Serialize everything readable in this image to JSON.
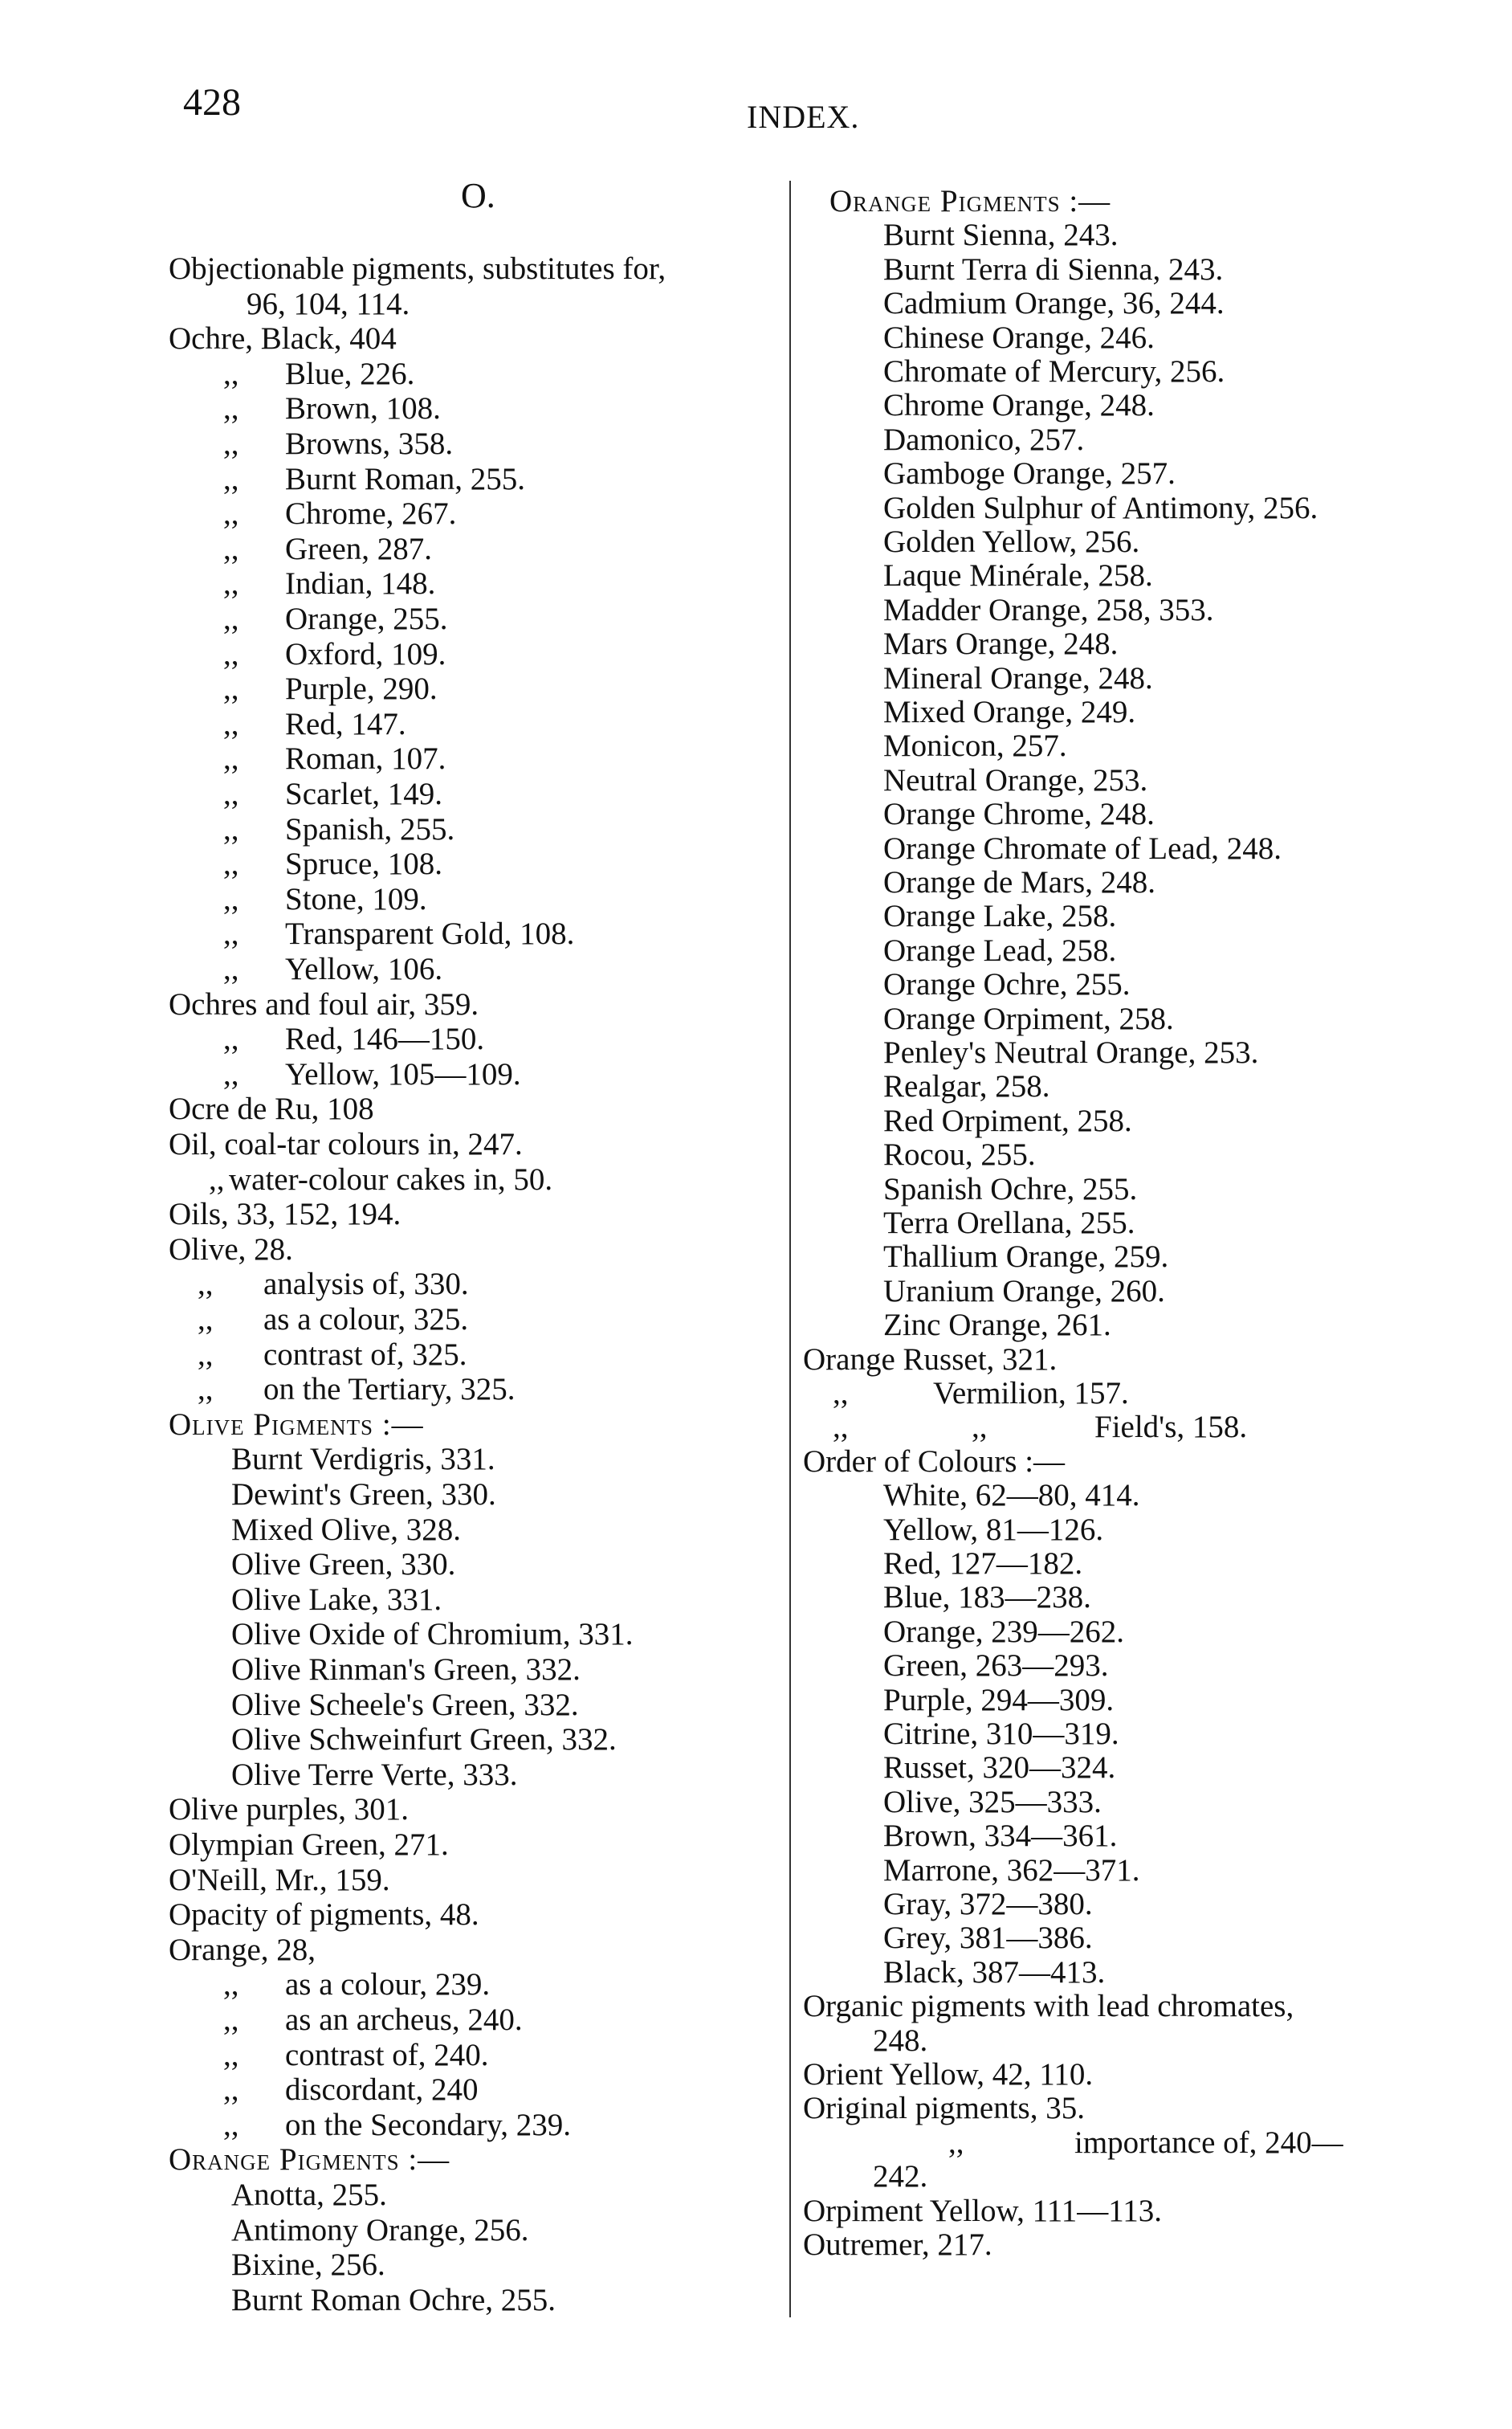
{
  "header": {
    "page_number": "428",
    "running_title": "INDEX."
  },
  "section_letter": "O.",
  "left_column": [
    {
      "kind": "entry",
      "text": "Objectionable pigments, substitutes for,"
    },
    {
      "kind": "cont",
      "text": "96, 104, 114."
    },
    {
      "kind": "entry",
      "text": "Ochre, Black, 404"
    },
    {
      "kind": "ditto",
      "ditto": ",,",
      "text": "Blue, 226."
    },
    {
      "kind": "ditto",
      "ditto": ",,",
      "text": "Brown, 108."
    },
    {
      "kind": "ditto",
      "ditto": ",,",
      "text": "Browns, 358."
    },
    {
      "kind": "ditto",
      "ditto": ",,",
      "text": "Burnt Roman, 255."
    },
    {
      "kind": "ditto",
      "ditto": ",,",
      "text": "Chrome, 267."
    },
    {
      "kind": "ditto",
      "ditto": ",,",
      "text": "Green, 287."
    },
    {
      "kind": "ditto",
      "ditto": ",,",
      "text": "Indian, 148."
    },
    {
      "kind": "ditto",
      "ditto": ",,",
      "text": "Orange, 255."
    },
    {
      "kind": "ditto",
      "ditto": ",,",
      "text": "Oxford, 109."
    },
    {
      "kind": "ditto",
      "ditto": ",,",
      "text": "Purple, 290."
    },
    {
      "kind": "ditto",
      "ditto": ",,",
      "text": "Red, 147."
    },
    {
      "kind": "ditto",
      "ditto": ",,",
      "text": "Roman, 107."
    },
    {
      "kind": "ditto",
      "ditto": ",,",
      "text": "Scarlet, 149."
    },
    {
      "kind": "ditto",
      "ditto": ",,",
      "text": "Spanish, 255."
    },
    {
      "kind": "ditto",
      "ditto": ",,",
      "text": "Spruce, 108."
    },
    {
      "kind": "ditto",
      "ditto": ",,",
      "text": "Stone, 109."
    },
    {
      "kind": "ditto",
      "ditto": ",,",
      "text": "Transparent Gold, 108."
    },
    {
      "kind": "ditto",
      "ditto": ",,",
      "text": "Yellow, 106."
    },
    {
      "kind": "entry",
      "text": "Ochres and foul air, 359."
    },
    {
      "kind": "ditto",
      "ditto": ",,",
      "text": "Red, 146—150."
    },
    {
      "kind": "ditto",
      "ditto": ",,",
      "text": "Yellow, 105—109."
    },
    {
      "kind": "entry",
      "text": "Ocre de Ru, 108"
    },
    {
      "kind": "entry",
      "text": "Oil, coal-tar colours in, 247."
    },
    {
      "kind": "dittoshort",
      "ditto": ",,",
      "text": "water-colour cakes in, 50."
    },
    {
      "kind": "entry",
      "text": "Oils, 33, 152, 194."
    },
    {
      "kind": "entry",
      "text": "Olive, 28."
    },
    {
      "kind": "dittomid",
      "ditto": ",,",
      "text": "analysis of, 330."
    },
    {
      "kind": "dittomid",
      "ditto": ",,",
      "text": "as a colour, 325."
    },
    {
      "kind": "dittomid",
      "ditto": ",,",
      "text": "contrast of, 325."
    },
    {
      "kind": "dittomid",
      "ditto": ",,",
      "text": "on the Tertiary, 325."
    },
    {
      "kind": "heading",
      "text": "Olive Pigments :—"
    },
    {
      "kind": "item",
      "text": "Burnt Verdigris, 331."
    },
    {
      "kind": "item",
      "text": "Dewint's Green, 330."
    },
    {
      "kind": "item",
      "text": "Mixed Olive, 328."
    },
    {
      "kind": "item",
      "text": "Olive Green, 330."
    },
    {
      "kind": "item",
      "text": "Olive Lake, 331."
    },
    {
      "kind": "item",
      "text": "Olive Oxide of Chromium, 331."
    },
    {
      "kind": "item",
      "text": "Olive Rinman's Green, 332."
    },
    {
      "kind": "item",
      "text": "Olive Scheele's Green, 332."
    },
    {
      "kind": "item",
      "text": "Olive Schweinfurt Green, 332."
    },
    {
      "kind": "item",
      "text": "Olive Terre Verte, 333."
    },
    {
      "kind": "entry",
      "text": "Olive purples, 301."
    },
    {
      "kind": "entry",
      "text": "Olympian Green, 271."
    },
    {
      "kind": "entry",
      "text": "O'Neill, Mr., 159."
    },
    {
      "kind": "entry",
      "text": "Opacity of pigments, 48."
    },
    {
      "kind": "entry",
      "text": "Orange, 28,"
    },
    {
      "kind": "ditto",
      "ditto": ",,",
      "text": "as a colour, 239."
    },
    {
      "kind": "ditto",
      "ditto": ",,",
      "text": "as an archeus, 240."
    },
    {
      "kind": "ditto",
      "ditto": ",,",
      "text": "contrast of, 240."
    },
    {
      "kind": "ditto",
      "ditto": ",,",
      "text": "discordant, 240"
    },
    {
      "kind": "ditto",
      "ditto": ",,",
      "text": "on the Secondary, 239."
    },
    {
      "kind": "heading",
      "text": "Orange Pigments :—"
    },
    {
      "kind": "item",
      "text": "Anotta, 255."
    },
    {
      "kind": "item",
      "text": "Antimony Orange, 256."
    },
    {
      "kind": "item",
      "text": "Bixine, 256."
    },
    {
      "kind": "item",
      "text": "Burnt Roman Ochre, 255."
    }
  ],
  "right_column": [
    {
      "kind": "heading",
      "text": "Orange Pigments :—"
    },
    {
      "kind": "item",
      "text": "Burnt Sienna, 243."
    },
    {
      "kind": "item",
      "text": "Burnt Terra di Sienna, 243."
    },
    {
      "kind": "item",
      "text": "Cadmium Orange, 36, 244."
    },
    {
      "kind": "item",
      "text": "Chinese Orange, 246."
    },
    {
      "kind": "item",
      "text": "Chromate of Mercury, 256."
    },
    {
      "kind": "item",
      "text": "Chrome Orange, 248."
    },
    {
      "kind": "item",
      "text": "Damonico, 257."
    },
    {
      "kind": "item",
      "text": "Gamboge Orange, 257."
    },
    {
      "kind": "item",
      "text": "Golden Sulphur of Antimony, 256."
    },
    {
      "kind": "item",
      "text": "Golden Yellow, 256."
    },
    {
      "kind": "item",
      "text": "Laque Minérale, 258."
    },
    {
      "kind": "item",
      "text": "Madder Orange, 258, 353."
    },
    {
      "kind": "item",
      "text": "Mars Orange, 248."
    },
    {
      "kind": "item",
      "text": "Mineral Orange, 248."
    },
    {
      "kind": "item",
      "text": "Mixed Orange, 249."
    },
    {
      "kind": "item",
      "text": "Monicon, 257."
    },
    {
      "kind": "item",
      "text": "Neutral Orange, 253."
    },
    {
      "kind": "item",
      "text": "Orange Chrome, 248."
    },
    {
      "kind": "item",
      "text": "Orange Chromate of Lead, 248."
    },
    {
      "kind": "item",
      "text": "Orange de Mars, 248."
    },
    {
      "kind": "item",
      "text": "Orange Lake, 258."
    },
    {
      "kind": "item",
      "text": "Orange Lead, 258."
    },
    {
      "kind": "item",
      "text": "Orange Ochre, 255."
    },
    {
      "kind": "item",
      "text": "Orange Orpiment, 258."
    },
    {
      "kind": "item",
      "text": "Penley's Neutral Orange, 253."
    },
    {
      "kind": "item",
      "text": "Realgar, 258."
    },
    {
      "kind": "item",
      "text": "Red Orpiment, 258."
    },
    {
      "kind": "item",
      "text": "Rocou, 255."
    },
    {
      "kind": "item",
      "text": "Spanish Ochre, 255."
    },
    {
      "kind": "item",
      "text": "Terra Orellana, 255."
    },
    {
      "kind": "item",
      "text": "Thallium Orange, 259."
    },
    {
      "kind": "item",
      "text": "Uranium Orange, 260."
    },
    {
      "kind": "item",
      "text": "Zinc Orange, 261."
    },
    {
      "kind": "entry",
      "text": "Orange Russet, 321."
    },
    {
      "kind": "ditto",
      "ditto": ",,",
      "text": "Vermilion, 157."
    },
    {
      "kind": "ditto2",
      "ditto": ",,",
      "ditto2": ",,",
      "text": "Field's, 158."
    },
    {
      "kind": "entry",
      "text": "Order of Colours :—"
    },
    {
      "kind": "item",
      "text": "White, 62—80, 414."
    },
    {
      "kind": "item",
      "text": "Yellow, 81—126."
    },
    {
      "kind": "item",
      "text": "Red, 127—182."
    },
    {
      "kind": "item",
      "text": "Blue, 183—238."
    },
    {
      "kind": "item",
      "text": "Orange, 239—262."
    },
    {
      "kind": "item",
      "text": "Green, 263—293."
    },
    {
      "kind": "item",
      "text": "Purple, 294—309."
    },
    {
      "kind": "item",
      "text": "Citrine, 310—319."
    },
    {
      "kind": "item",
      "text": "Russet, 320—324."
    },
    {
      "kind": "item",
      "text": "Olive, 325—333."
    },
    {
      "kind": "item",
      "text": "Brown, 334—361."
    },
    {
      "kind": "item",
      "text": "Marrone, 362—371."
    },
    {
      "kind": "item",
      "text": "Gray, 372—380."
    },
    {
      "kind": "item",
      "text": "Grey, 381—386."
    },
    {
      "kind": "item",
      "text": "Black, 387—413."
    },
    {
      "kind": "entry",
      "text": "Organic pigments with lead chromates,"
    },
    {
      "kind": "cont",
      "text": "248."
    },
    {
      "kind": "entry",
      "text": "Orient Yellow, 42, 110."
    },
    {
      "kind": "entry",
      "text": "Original pigments, 35."
    },
    {
      "kind": "dittowide",
      "ditto": ",,",
      "text": "importance of, 240—"
    },
    {
      "kind": "cont",
      "text": "242."
    },
    {
      "kind": "entry",
      "text": "Orpiment Yellow, 111—113."
    },
    {
      "kind": "entry",
      "text": "Outremer, 217."
    }
  ]
}
